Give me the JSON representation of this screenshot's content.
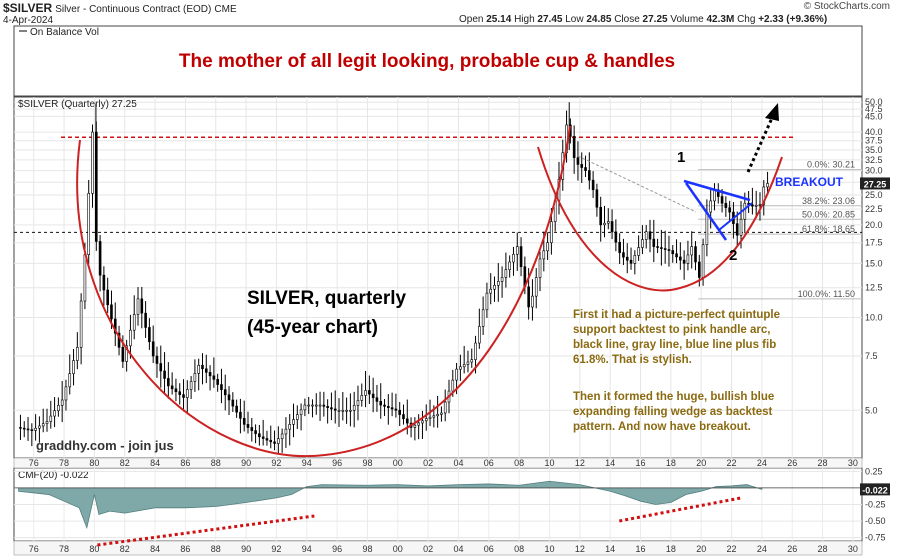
{
  "header": {
    "symbol": "$SILVER",
    "description": "Silver - Continuous Contract (EOD)",
    "exchange": "CME",
    "date": "4-Apr-2024",
    "ohlc": {
      "open_label": "Open",
      "open": "25.14",
      "high_label": "High",
      "high": "27.45",
      "low_label": "Low",
      "low": "24.85",
      "close_label": "Close",
      "close": "27.25",
      "volume_label": "Volume",
      "volume": "42.3M",
      "chg_label": "Chg",
      "chg": "+2.33 (+9.36%)"
    },
    "copyright": "© StockCharts.com"
  },
  "top_indicator_label": "On Balance Vol",
  "colors": {
    "title_red": "#c00000",
    "arc_red": "#cc2222",
    "dash_red": "#d01010",
    "wedge_blue": "#1a33ff",
    "note_text": "#8b6a10",
    "cmf_fill": "#7fa8a8",
    "candle_up": "#ffffff",
    "candle_down": "#000000"
  },
  "chart_data": [
    {
      "type": "candlestick",
      "title": "The mother of all legit looking, probable cup & handles",
      "panel_label": "$SILVER (Quarterly) 27.25",
      "scale": "log",
      "ylim": [
        3.5,
        52
      ],
      "y_ticks": [
        5.0,
        7.5,
        10.0,
        12.5,
        15.0,
        17.5,
        20.0,
        22.5,
        25.0,
        27.5,
        30.0,
        32.5,
        35.0,
        37.5,
        40.0,
        45.0,
        47.5,
        50.0
      ],
      "y_tick_labels": [
        "5.0",
        "7.5",
        "10.0",
        "12.5",
        "15.0",
        "17.5",
        "20.0",
        "22.5",
        "25.0",
        "27.5",
        "30.0",
        "32.5",
        "35.0",
        "37.5",
        "40.0",
        "45.0",
        "47.5",
        "50.0"
      ],
      "x_ticks": [
        1976,
        1978,
        1980,
        1982,
        1984,
        1986,
        1988,
        1990,
        1992,
        1994,
        1996,
        1998,
        2000,
        2002,
        2004,
        2006,
        2008,
        2010,
        2012,
        2014,
        2016,
        2018,
        2020,
        2022,
        2024,
        2026,
        2028,
        2030
      ],
      "x_tick_labels": [
        "76",
        "78",
        "80",
        "82",
        "84",
        "86",
        "88",
        "90",
        "92",
        "94",
        "96",
        "98",
        "00",
        "02",
        "04",
        "06",
        "08",
        "10",
        "12",
        "14",
        "16",
        "18",
        "20",
        "22",
        "24",
        "26",
        "28",
        "30"
      ],
      "price_path": [
        [
          1975.0,
          4.4
        ],
        [
          1976.0,
          4.3
        ],
        [
          1977.0,
          4.6
        ],
        [
          1978.0,
          5.4
        ],
        [
          1979.0,
          8.0
        ],
        [
          1979.5,
          16.0
        ],
        [
          1980.0,
          40.0
        ],
        [
          1980.3,
          15.0
        ],
        [
          1981.0,
          11.0
        ],
        [
          1982.0,
          7.2
        ],
        [
          1983.0,
          11.5
        ],
        [
          1984.0,
          7.5
        ],
        [
          1985.0,
          6.0
        ],
        [
          1986.0,
          5.5
        ],
        [
          1987.0,
          7.0
        ],
        [
          1988.0,
          6.3
        ],
        [
          1989.0,
          5.4
        ],
        [
          1990.0,
          4.5
        ],
        [
          1991.0,
          4.1
        ],
        [
          1992.0,
          3.9
        ],
        [
          1993.0,
          4.5
        ],
        [
          1994.0,
          5.2
        ],
        [
          1995.0,
          5.2
        ],
        [
          1996.0,
          5.0
        ],
        [
          1997.0,
          5.0
        ],
        [
          1998.0,
          5.8
        ],
        [
          1999.0,
          5.2
        ],
        [
          2000.0,
          5.0
        ],
        [
          2001.0,
          4.4
        ],
        [
          2002.0,
          4.7
        ],
        [
          2003.0,
          4.9
        ],
        [
          2004.0,
          6.8
        ],
        [
          2005.0,
          7.3
        ],
        [
          2006.0,
          12.0
        ],
        [
          2007.0,
          13.5
        ],
        [
          2008.0,
          17.0
        ],
        [
          2008.8,
          10.5
        ],
        [
          2009.5,
          15.5
        ],
        [
          2010.0,
          17.5
        ],
        [
          2010.8,
          29.0
        ],
        [
          2011.3,
          44.0
        ],
        [
          2011.8,
          32.0
        ],
        [
          2012.5,
          30.0
        ],
        [
          2013.0,
          26.0
        ],
        [
          2013.5,
          20.0
        ],
        [
          2014.0,
          20.5
        ],
        [
          2014.8,
          16.0
        ],
        [
          2015.5,
          15.0
        ],
        [
          2016.5,
          19.0
        ],
        [
          2017.0,
          17.0
        ],
        [
          2018.0,
          16.5
        ],
        [
          2019.0,
          15.0
        ],
        [
          2019.5,
          17.0
        ],
        [
          2020.0,
          13.5
        ],
        [
          2020.5,
          22.0
        ],
        [
          2021.0,
          26.0
        ],
        [
          2021.5,
          23.5
        ],
        [
          2022.0,
          22.0
        ],
        [
          2022.5,
          18.5
        ],
        [
          2023.0,
          23.5
        ],
        [
          2023.5,
          23.0
        ],
        [
          2024.0,
          23.3
        ],
        [
          2024.3,
          27.25
        ]
      ],
      "levels": [
        {
          "name": "resistance",
          "value": 38.5,
          "style": "red-dashed"
        },
        {
          "name": "support",
          "value": 18.9,
          "style": "black-dashed"
        }
      ],
      "fib_levels": [
        {
          "label": "0.0%: 30.21",
          "value": 30.21
        },
        {
          "label": "38.2%: 23.06",
          "value": 23.06
        },
        {
          "label": "50.0%: 20.85",
          "value": 20.85
        },
        {
          "label": "61.8%: 18.65",
          "value": 18.65
        },
        {
          "label": "100.0%: 11.50",
          "value": 11.5
        }
      ],
      "annotations": {
        "big_label_line1": "SILVER, quarterly",
        "big_label_line2": "(45-year chart)",
        "breakout": "BREAKOUT",
        "mark_1": "1",
        "mark_2": "2",
        "close_tag": "27.25",
        "watermark": "graddhy.com - join jus",
        "note_para1": [
          "First it had a picture-perfect quintuple",
          "support backtest to pink handle arc,",
          "black line, gray line, blue line plus fib",
          "61.8%. That is stylish."
        ],
        "note_para2": [
          "Then it formed the huge, bullish blue",
          "expanding falling wedge as backtest",
          "pattern. And now have breakout."
        ]
      }
    },
    {
      "type": "area",
      "title": "CMF(20) -0.022",
      "ylim": [
        -0.8,
        0.3
      ],
      "y_ticks": [
        0.25,
        0.0,
        -0.25,
        -0.5,
        -0.75
      ],
      "y_tick_labels": [
        "0.25",
        "0.00",
        "-0.25",
        "-0.50",
        "-0.75"
      ],
      "current_value_label": "-0.022",
      "x": [
        1975,
        1977,
        1978,
        1979,
        1979.5,
        1980,
        1980.3,
        1981,
        1982,
        1984,
        1986,
        1988,
        1990,
        1992,
        1993,
        1994,
        1995,
        1998,
        2000,
        2002,
        2004,
        2006,
        2008,
        2010,
        2012,
        2014,
        2015,
        2016,
        2017,
        2018,
        2019,
        2020,
        2021,
        2022,
        2023,
        2024
      ],
      "values": [
        -0.05,
        -0.1,
        -0.2,
        -0.3,
        -0.6,
        -0.1,
        -0.4,
        -0.35,
        -0.38,
        -0.3,
        -0.3,
        -0.28,
        -0.22,
        -0.15,
        -0.1,
        0.02,
        0.05,
        0.04,
        0.05,
        0.03,
        0.05,
        0.06,
        0.04,
        0.1,
        0.05,
        -0.05,
        -0.12,
        -0.2,
        -0.25,
        -0.22,
        -0.1,
        -0.05,
        0.02,
        0.03,
        0.05,
        -0.022
      ]
    }
  ]
}
